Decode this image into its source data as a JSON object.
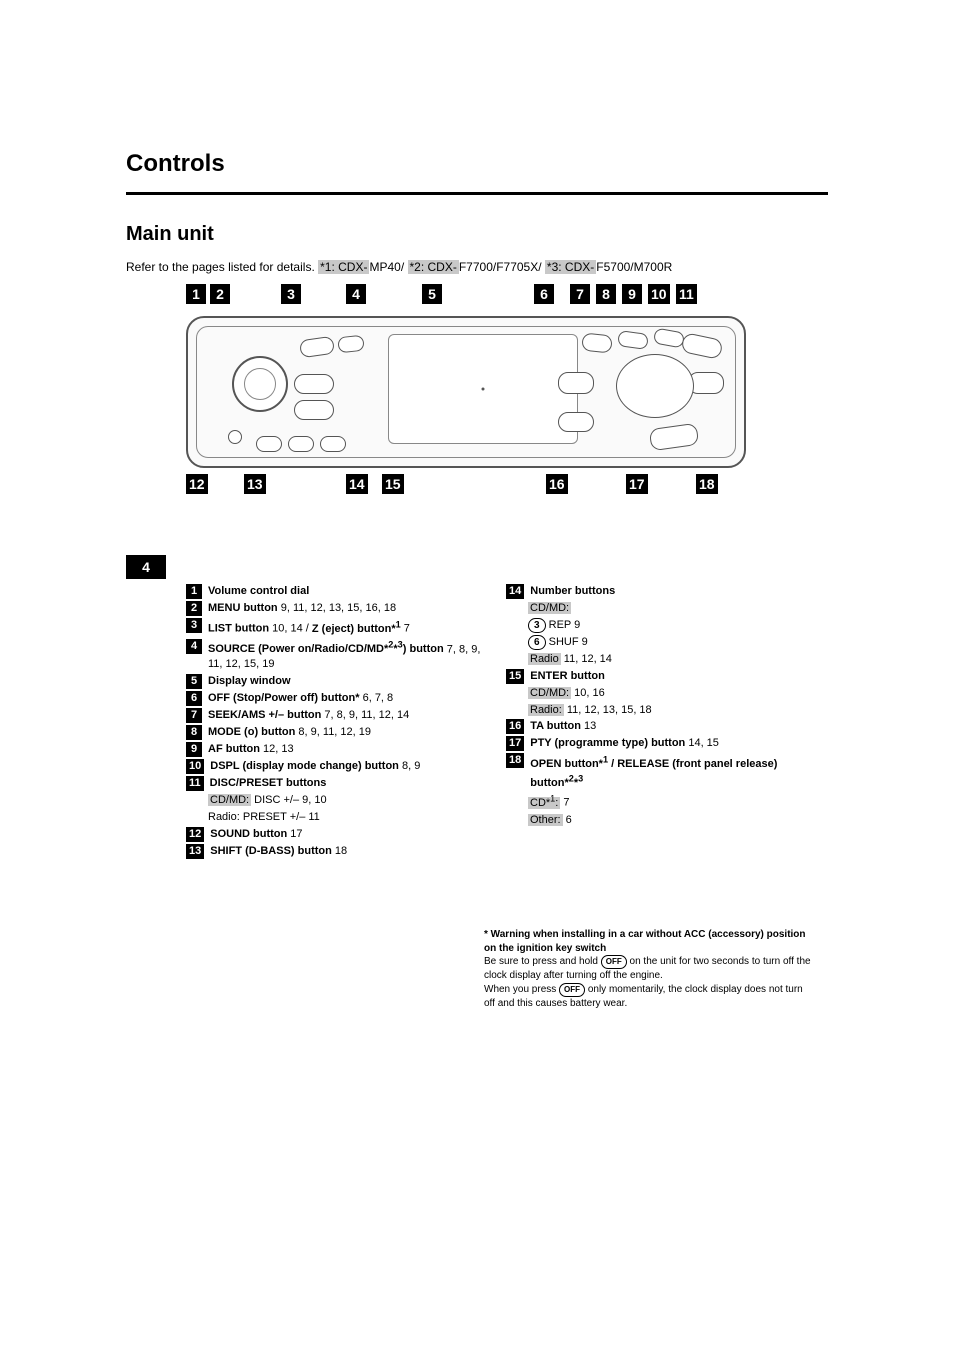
{
  "page_number_badge": "4",
  "section_title": "Controls",
  "subsection_title": "Main unit",
  "instruction_prefix": "Refer to the pages listed for details.",
  "instruction_gray1": "*1: CDX-",
  "instruction_plain1": "MP40/",
  "instruction_gray2": "*2: CDX-",
  "instruction_plain2": "F7700/F7705X/",
  "instruction_gray3": "*3: CDX-",
  "instruction_plain3": "F5700/M700R",
  "callouts_top": [
    "1",
    "2",
    "3",
    "4",
    "5",
    "6",
    "7",
    "8",
    "9",
    "10",
    "11"
  ],
  "callouts_bottom": [
    "12",
    "13",
    "14",
    "15",
    "16",
    "17",
    "18"
  ],
  "callouts_top_x": [
    0,
    24,
    95,
    160,
    236,
    348,
    384,
    410,
    436,
    462,
    490
  ],
  "callouts_bottom_x": [
    0,
    58,
    160,
    196,
    360,
    440,
    510
  ],
  "entries_left": [
    {
      "n": "1",
      "html": "<b>Volume control dial</b>"
    },
    {
      "n": "2",
      "html": "<b>MENU button</b> 9, 11, 12, 13, 15, 16, 18"
    },
    {
      "n": "3",
      "html": "<b>LIST button</b> 10, 14 / <b>Z (eject) button*<sup>1</sup></b> 7"
    },
    {
      "n": "4",
      "html": "<b>SOURCE (Power on/Radio/CD/MD*<sup>2</sup>*<sup>3</sup>) button</b> 7, 8, 9, 11, 12, 15, 19"
    },
    {
      "n": "5",
      "html": "<b>Display window</b>"
    },
    {
      "n": "6",
      "html": "<b>OFF (Stop/Power off) button*</b> 6, 7, 8"
    },
    {
      "n": "7",
      "html": "<b>SEEK/AMS +/– button</b> 7, 8, 9, 11, 12, 14"
    },
    {
      "n": "8",
      "html": "<b>MODE (o) button</b> 8, 9, 11, 12, 19"
    },
    {
      "n": "9",
      "html": "<b>AF button</b> 12, 13"
    },
    {
      "n": "10",
      "html": "<b>DSPL (display mode change) button</b> 8, 9"
    },
    {
      "n": "11",
      "html": "<b>DISC/PRESET buttons</b>"
    }
  ],
  "entries_left_sub": [
    {
      "html": "<span class='gray'>CD/MD:</span> DISC +/– 9, 10"
    },
    {
      "html": "Radio: PRESET +/– 11"
    }
  ],
  "entries_left_tail": [
    {
      "n": "12",
      "html": "<b>SOUND button</b> 17"
    },
    {
      "n": "13",
      "html": "<b>SHIFT (D-BASS) button</b> 18"
    }
  ],
  "entries_right": [
    {
      "n": "14",
      "html": "<b>Number buttons</b>"
    }
  ],
  "entries_right_sub1": [
    {
      "html": "<span class='gray'>CD/MD:</span>"
    },
    {
      "html": "<span class='pill-num'>3</span> REP 9"
    },
    {
      "html": "<span class='pill-num'>6</span> SHUF 9"
    },
    {
      "html": "<span class='gray'>Radio</span> 11, 12, 14"
    }
  ],
  "entries_right_mid": [
    {
      "n": "15",
      "html": "<b>ENTER button</b>"
    }
  ],
  "entries_right_sub2": [
    {
      "html": "<span class='gray'>CD/MD:</span> 10, 16"
    },
    {
      "html": "<span class='gray'>Radio:</span> 11, 12, 13, 15, 18"
    }
  ],
  "entries_right_tail": [
    {
      "n": "16",
      "html": "<b>TA button</b> 13"
    },
    {
      "n": "17",
      "html": "<b>PTY (programme type) button</b> 14, 15"
    },
    {
      "n": "18",
      "html": "<b>OPEN button*<sup>1</sup> / RELEASE (front panel release) button*<sup>2</sup>*<sup>3</sup></b>"
    }
  ],
  "entries_right_sub3": [
    {
      "html": "<span class='gray'>CD*<sup>1</sup>:</span> 7"
    },
    {
      "html": "<span class='gray'>Other:</span> 6"
    }
  ],
  "tip": {
    "title": "* Warning when installing in a car without ACC (accessory) position on the ignition key switch",
    "body": "Be sure to press and hold",
    "body2": "on the unit for two seconds to turn off the clock display after turning off the engine.",
    "body3": "When you press",
    "body4": "only momentarily, the clock display does not turn off and this causes battery wear.",
    "off_label": "OFF"
  },
  "colors": {
    "badge_bg": "#000000",
    "badge_fg": "#ffffff",
    "gray_bg": "#c8c8c8",
    "rule": "#000000"
  }
}
